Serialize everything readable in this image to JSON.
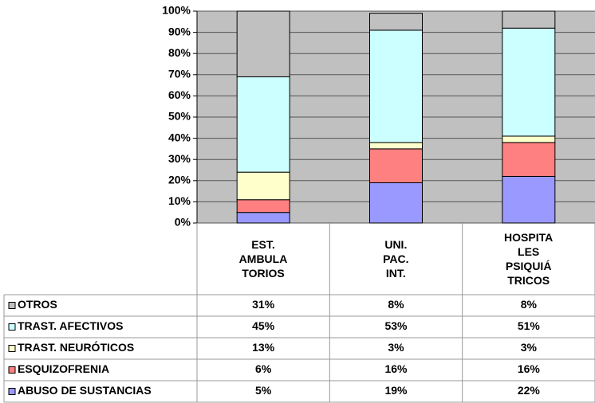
{
  "chart_data": {
    "type": "stacked_bar",
    "categories": [
      "EST.\nAMBULA\nTORIOS",
      "UNI.\nPAC.\nINT.",
      "HOSPITA\nLES\nPSIQUIÁ\nTRICOS"
    ],
    "series": [
      {
        "name": "OTROS",
        "color": "#c0c0c0",
        "values": [
          31,
          8,
          8
        ],
        "value_labels": [
          "31%",
          "8%",
          "8%"
        ]
      },
      {
        "name": "TRAST. AFECTIVOS",
        "color": "#ccffff",
        "values": [
          45,
          53,
          51
        ],
        "value_labels": [
          "45%",
          "53%",
          "51%"
        ]
      },
      {
        "name": "TRAST. NEURÓTICOS",
        "color": "#ffffcc",
        "values": [
          13,
          3,
          3
        ],
        "value_labels": [
          "13%",
          "3%",
          "3%"
        ]
      },
      {
        "name": "ESQUIZOFRENIA",
        "color": "#ff8080",
        "values": [
          6,
          16,
          16
        ],
        "value_labels": [
          "6%",
          "16%",
          "16%"
        ]
      },
      {
        "name": "ABUSO DE SUSTANCIAS",
        "color": "#9999ff",
        "values": [
          5,
          19,
          22
        ],
        "value_labels": [
          "5%",
          "19%",
          "22%"
        ]
      }
    ],
    "ylim": [
      0,
      100
    ],
    "yticks": [
      {
        "value": 0,
        "label": "0%"
      },
      {
        "value": 10,
        "label": "10%"
      },
      {
        "value": 20,
        "label": "20%"
      },
      {
        "value": 30,
        "label": "30%"
      },
      {
        "value": 40,
        "label": "40%"
      },
      {
        "value": 50,
        "label": "50%"
      },
      {
        "value": 60,
        "label": "60%"
      },
      {
        "value": 70,
        "label": "70%"
      },
      {
        "value": 80,
        "label": "80%"
      },
      {
        "value": 90,
        "label": "90%"
      },
      {
        "value": 100,
        "label": "100%"
      }
    ],
    "grid": true,
    "plot_background": "#c0c0c0"
  }
}
